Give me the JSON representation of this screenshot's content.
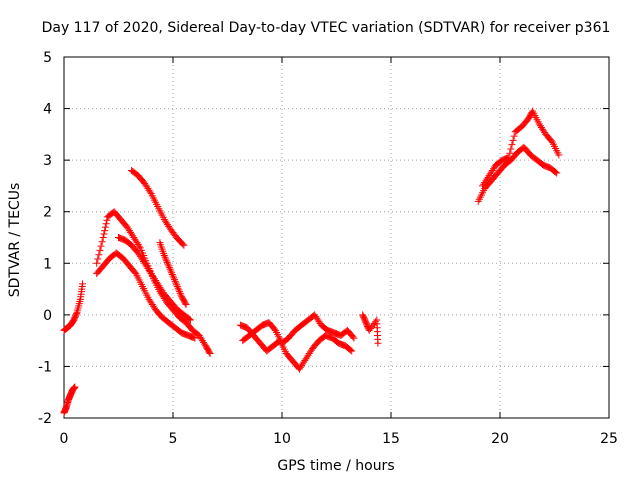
{
  "chart_data": {
    "type": "scatter",
    "title": "Day 117 of 2020, Sidereal Day-to-day VTEC variation (SDTVAR) for receiver p361",
    "xlabel": "GPS time / hours",
    "ylabel": "SDTVAR / TECUs",
    "xlim": [
      0,
      25
    ],
    "ylim": [
      -2,
      5
    ],
    "x_ticks": [
      0,
      5,
      10,
      15,
      20,
      25
    ],
    "y_ticks": [
      -2,
      -1,
      0,
      1,
      2,
      3,
      4,
      5
    ],
    "grid": true,
    "marker": "+",
    "marker_color": "#ff0000",
    "segments": [
      {
        "name": "early-low",
        "x": [
          0.0,
          0.1,
          0.2,
          0.3,
          0.4,
          0.5
        ],
        "y": [
          -1.9,
          -1.8,
          -1.65,
          -1.55,
          -1.45,
          -1.4
        ]
      },
      {
        "name": "early-rise",
        "x": [
          0.0,
          0.15,
          0.3,
          0.45,
          0.6,
          0.75,
          0.85
        ],
        "y": [
          -0.3,
          -0.25,
          -0.2,
          -0.1,
          0.05,
          0.3,
          0.6
        ]
      },
      {
        "name": "morning-upper",
        "x": [
          1.5,
          1.8,
          2.0,
          2.3,
          2.6,
          2.9,
          3.2,
          3.5,
          3.8,
          4.1,
          4.4,
          4.7,
          5.0,
          5.3,
          5.6,
          5.9,
          6.2,
          6.5,
          6.7
        ],
        "y": [
          1.0,
          1.5,
          1.9,
          2.0,
          1.85,
          1.7,
          1.5,
          1.3,
          1.0,
          0.7,
          0.45,
          0.25,
          0.1,
          -0.05,
          -0.15,
          -0.3,
          -0.4,
          -0.6,
          -0.75
        ]
      },
      {
        "name": "morning-lower",
        "x": [
          1.5,
          1.8,
          2.1,
          2.4,
          2.7,
          3.0,
          3.3,
          3.6,
          3.9,
          4.2,
          4.5,
          4.8,
          5.1,
          5.4,
          5.7,
          6.0
        ],
        "y": [
          0.8,
          0.95,
          1.1,
          1.2,
          1.1,
          0.95,
          0.8,
          0.55,
          0.3,
          0.1,
          -0.05,
          -0.15,
          -0.25,
          -0.35,
          -0.4,
          -0.45
        ]
      },
      {
        "name": "morning-mid",
        "x": [
          2.5,
          2.8,
          3.1,
          3.4,
          3.7,
          4.0,
          4.3,
          4.6,
          4.9,
          5.2,
          5.5,
          5.8
        ],
        "y": [
          1.5,
          1.45,
          1.35,
          1.2,
          1.0,
          0.8,
          0.6,
          0.4,
          0.25,
          0.1,
          0.0,
          -0.1
        ]
      },
      {
        "name": "high-diagonal",
        "x": [
          3.1,
          3.4,
          3.7,
          4.0,
          4.3,
          4.6,
          4.9,
          5.2,
          5.5
        ],
        "y": [
          2.8,
          2.7,
          2.55,
          2.35,
          2.1,
          1.85,
          1.65,
          1.48,
          1.35
        ]
      },
      {
        "name": "spike-band",
        "x": [
          4.4,
          4.6,
          4.8,
          5.0,
          5.2,
          5.4,
          5.6
        ],
        "y": [
          1.4,
          1.15,
          0.95,
          0.75,
          0.55,
          0.35,
          0.2
        ]
      },
      {
        "name": "midday-a",
        "x": [
          8.1,
          8.4,
          8.7,
          9.0,
          9.3,
          9.6,
          9.9,
          10.2,
          10.5,
          10.8,
          11.1,
          11.4,
          11.7,
          12.0,
          12.3,
          12.6,
          12.9,
          13.2
        ],
        "y": [
          -0.2,
          -0.25,
          -0.4,
          -0.55,
          -0.7,
          -0.6,
          -0.5,
          -0.75,
          -0.9,
          -1.05,
          -0.85,
          -0.65,
          -0.5,
          -0.4,
          -0.45,
          -0.55,
          -0.6,
          -0.7
        ]
      },
      {
        "name": "midday-b",
        "x": [
          8.2,
          8.5,
          8.8,
          9.1,
          9.4,
          9.7,
          10.0,
          10.3,
          10.6,
          10.9,
          11.2,
          11.5,
          11.8,
          12.1,
          12.4,
          12.7,
          13.0,
          13.3
        ],
        "y": [
          -0.5,
          -0.4,
          -0.3,
          -0.2,
          -0.15,
          -0.3,
          -0.55,
          -0.45,
          -0.3,
          -0.2,
          -0.1,
          0.0,
          -0.2,
          -0.3,
          -0.35,
          -0.4,
          -0.3,
          -0.45
        ]
      },
      {
        "name": "midday-tail",
        "x": [
          13.7,
          13.85,
          14.0,
          14.35,
          14.4
        ],
        "y": [
          0.0,
          -0.15,
          -0.3,
          -0.1,
          -0.55
        ]
      },
      {
        "name": "evening-lower",
        "x": [
          19.0,
          19.3,
          19.6,
          19.9,
          20.2,
          20.5,
          20.8,
          21.1,
          21.4,
          21.7,
          22.0,
          22.3,
          22.6
        ],
        "y": [
          2.2,
          2.45,
          2.6,
          2.75,
          2.9,
          3.0,
          3.15,
          3.25,
          3.1,
          3.0,
          2.9,
          2.85,
          2.75
        ]
      },
      {
        "name": "evening-upper",
        "x": [
          19.2,
          19.5,
          19.8,
          20.1,
          20.4,
          20.7,
          21.0,
          21.3,
          21.5,
          21.8,
          22.1,
          22.4,
          22.7
        ],
        "y": [
          2.5,
          2.7,
          2.9,
          3.0,
          3.05,
          3.55,
          3.65,
          3.8,
          3.95,
          3.7,
          3.5,
          3.35,
          3.1
        ]
      }
    ]
  }
}
